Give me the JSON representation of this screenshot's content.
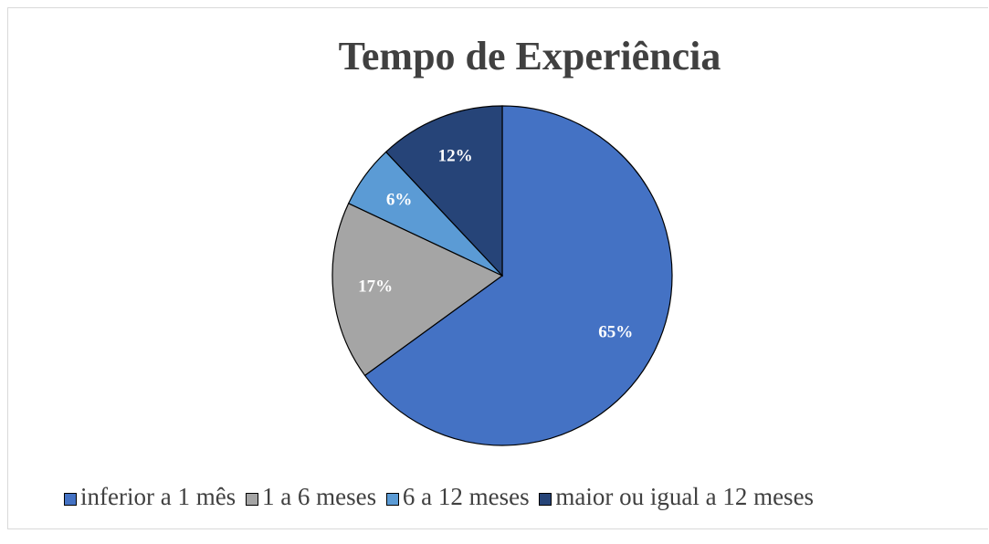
{
  "chart_data": {
    "type": "pie",
    "title": "Tempo de Experiência",
    "categories": [
      "inferior a 1 mês",
      "1 a 6 meses",
      "6 a 12 meses",
      "maior ou igual a 12 meses"
    ],
    "values": [
      65,
      17,
      6,
      12
    ],
    "value_labels": [
      "65%",
      "17%",
      "6%",
      "12%"
    ],
    "colors": [
      "#4472c4",
      "#a5a5a5",
      "#5b9bd5",
      "#264478"
    ],
    "legend": "bottom"
  }
}
